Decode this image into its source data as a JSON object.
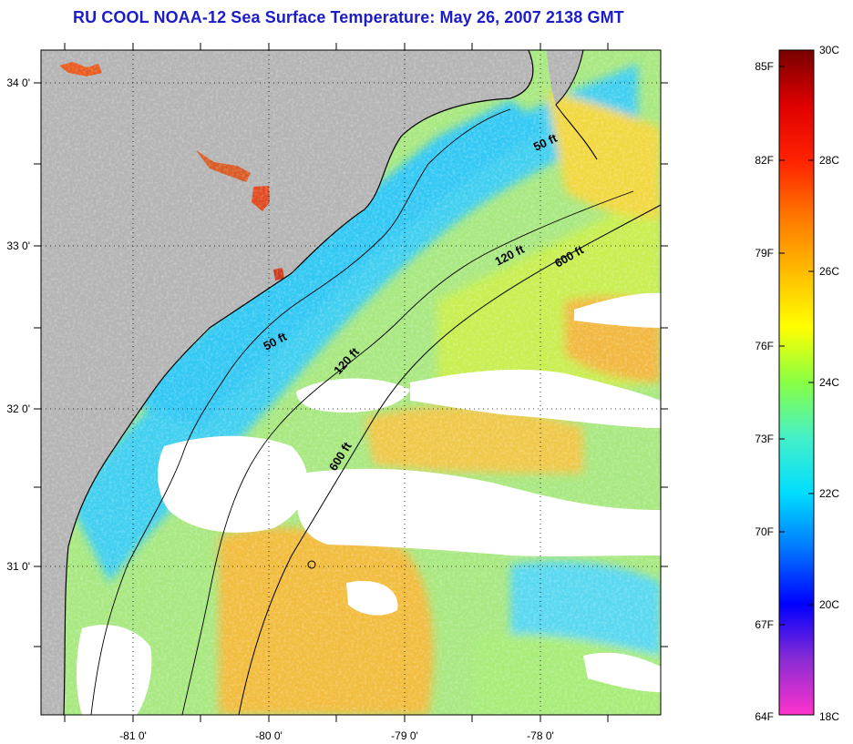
{
  "title": "RU COOL  NOAA-12  Sea Surface Temperature:  May 26, 2007 2138 GMT",
  "map": {
    "lon_labels": [
      "-81 0'",
      "-80 0'",
      "-79 0'",
      "-78 0'"
    ],
    "lat_labels": [
      "34 0'",
      "33 0'",
      "32 0'",
      "31 0'"
    ],
    "contour_labels": [
      {
        "name": "contour-50ft-north",
        "text": "50 ft"
      },
      {
        "name": "contour-50ft-south",
        "text": "50 ft"
      },
      {
        "name": "contour-120ft-north",
        "text": "120 ft"
      },
      {
        "name": "contour-120ft-south",
        "text": "120 ft"
      },
      {
        "name": "contour-600ft-north",
        "text": "600 ft"
      },
      {
        "name": "contour-600ft-south",
        "text": "600 ft"
      }
    ],
    "colors": {
      "land": "#b4b4b4",
      "cloud": "#ffffff",
      "cool_water": "#46d2f0",
      "mid_water": "#9be68c",
      "warm_water": "#f0c83c"
    }
  },
  "colorbar": {
    "fahrenheit_labels": [
      "85F",
      "82F",
      "79F",
      "76F",
      "73F",
      "70F",
      "67F",
      "64F"
    ],
    "celsius_labels": [
      "30C",
      "28C",
      "26C",
      "24C",
      "22C",
      "20C",
      "18C"
    ],
    "stops": [
      "#ff33cc",
      "#8a2bd4",
      "#0000ff",
      "#0077ff",
      "#00ddff",
      "#44f0c8",
      "#88ff44",
      "#ffff00",
      "#ffbb00",
      "#ff7700",
      "#ff2200",
      "#e00000",
      "#780000"
    ]
  }
}
